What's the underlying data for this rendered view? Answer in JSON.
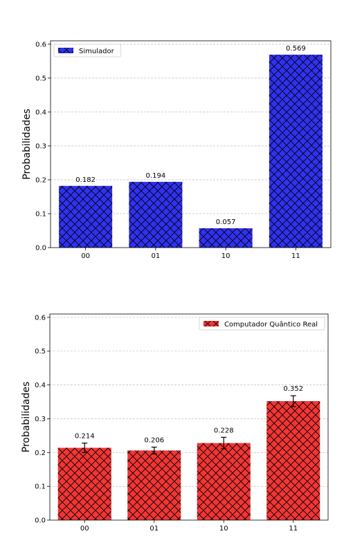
{
  "chart_data": [
    {
      "type": "bar",
      "categories": [
        "00",
        "01",
        "10",
        "11"
      ],
      "values": [
        0.182,
        0.194,
        0.057,
        0.569
      ],
      "data_labels": [
        "0.182",
        "0.194",
        "0.057",
        "0.569"
      ],
      "ylabel": "Probabilidades",
      "xlabel": "",
      "ylim": [
        0,
        0.61
      ],
      "yticks": [
        "0.0",
        "0.1",
        "0.2",
        "0.3",
        "0.4",
        "0.5",
        "0.6"
      ],
      "legend": "Simulador",
      "legend_position": "top-left",
      "color": "#3131f0",
      "hatch": "cross-hatch",
      "grid": "horizontal-dashed"
    },
    {
      "type": "bar",
      "categories": [
        "00",
        "01",
        "10",
        "11"
      ],
      "values": [
        0.214,
        0.206,
        0.228,
        0.352
      ],
      "errors": [
        0.014,
        0.01,
        0.017,
        0.016
      ],
      "data_labels": [
        "0.214",
        "0.206",
        "0.228",
        "0.352"
      ],
      "ylabel": "Probabilidades",
      "xlabel": "",
      "ylim": [
        0,
        0.61
      ],
      "yticks": [
        "0.0",
        "0.1",
        "0.2",
        "0.3",
        "0.4",
        "0.5",
        "0.6"
      ],
      "legend": "Computador Quântico Real",
      "legend_position": "top-right",
      "color": "#f23535",
      "hatch": "cross-hatch",
      "grid": "horizontal-dashed"
    }
  ]
}
